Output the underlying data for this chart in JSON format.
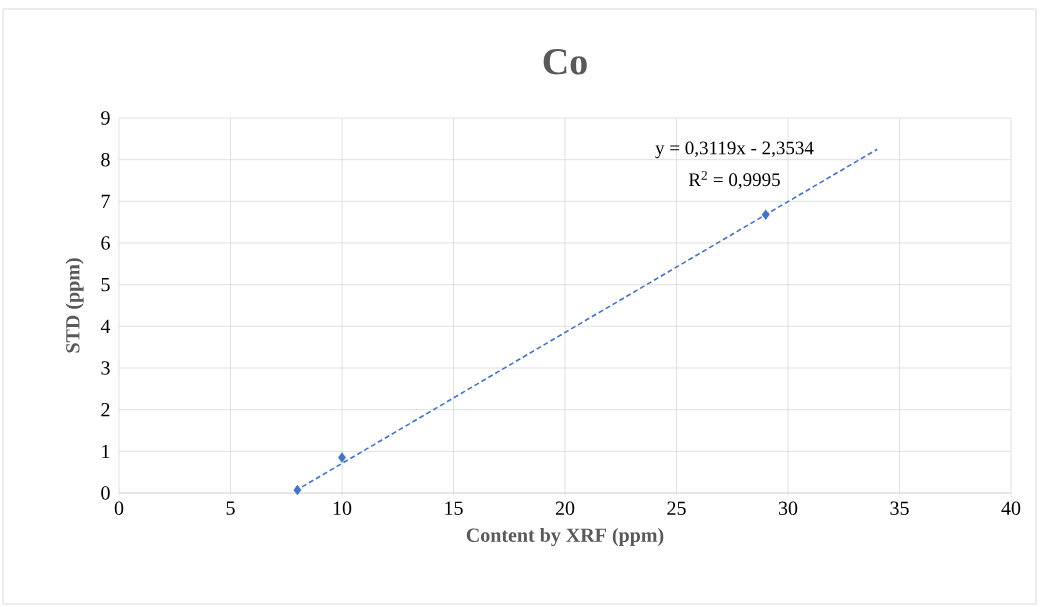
{
  "chart_data": {
    "type": "scatter",
    "title": "Co",
    "xlabel": "Content by XRF (ppm)",
    "ylabel": "STD (ppm)",
    "annotations": [
      "y = 0,3119x - 2,3534",
      "R$^{2}$ = 0,9995"
    ],
    "series": [
      {
        "color": "#4472c4",
        "marker": "diamond",
        "x": [
          8,
          10,
          29
        ],
        "values": [
          0.07,
          0.85,
          6.68
        ]
      },
      {
        "type": "line",
        "color": "#4472c4",
        "marker": "none",
        "line_style": "dashed",
        "x": [
          7.9,
          34
        ],
        "values": [
          0.05,
          8.25
        ]
      }
    ],
    "xlim": [
      0,
      40
    ],
    "xticks": [
      0,
      5,
      10,
      15,
      20,
      25,
      30,
      35,
      40
    ],
    "ylim": [
      0,
      9
    ],
    "yticks": [
      0,
      1,
      2,
      3,
      4,
      5,
      6,
      7,
      8,
      9
    ],
    "grid": true
  }
}
